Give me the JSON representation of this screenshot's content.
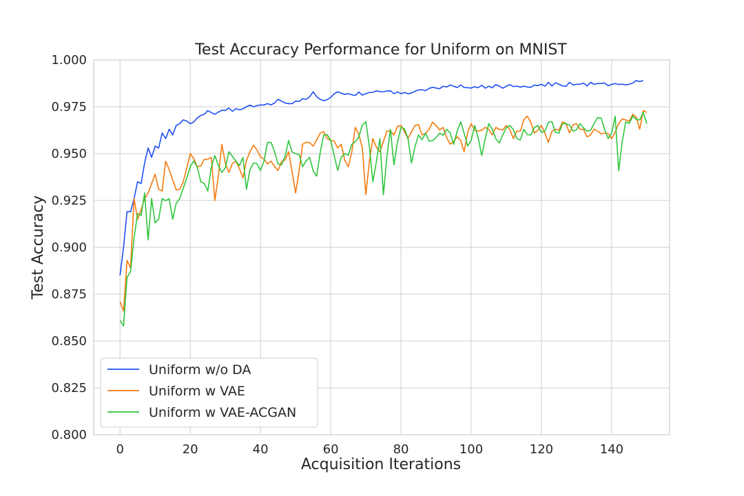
{
  "chart_data": {
    "type": "line",
    "title": "Test Accuracy Performance for Uniform on MNIST",
    "xlabel": "Acquisition Iterations",
    "ylabel": "Test Accuracy",
    "xlim": [
      -7.5,
      156.5
    ],
    "ylim": [
      0.8,
      1.0
    ],
    "xticks": [
      0,
      20,
      40,
      60,
      80,
      100,
      120,
      140
    ],
    "yticks": [
      "0.800",
      "0.825",
      "0.850",
      "0.875",
      "0.900",
      "0.925",
      "0.950",
      "0.975",
      "1.000"
    ],
    "grid": true,
    "legend_position": "lower-left",
    "series": [
      {
        "name": "Uniform w/o DA",
        "color": "#1d4ef2",
        "anchors": [
          [
            0,
            0.885
          ],
          [
            1,
            0.9
          ],
          [
            2,
            0.919
          ],
          [
            3,
            0.919
          ],
          [
            4,
            0.926
          ],
          [
            5,
            0.935
          ],
          [
            6,
            0.934
          ],
          [
            7,
            0.945
          ],
          [
            8,
            0.953
          ],
          [
            9,
            0.948
          ],
          [
            10,
            0.954
          ],
          [
            11,
            0.953
          ],
          [
            12,
            0.961
          ],
          [
            13,
            0.958
          ],
          [
            14,
            0.963
          ],
          [
            15,
            0.96
          ],
          [
            16,
            0.965
          ],
          [
            17,
            0.966
          ],
          [
            18,
            0.968
          ],
          [
            20,
            0.966
          ],
          [
            22,
            0.969
          ],
          [
            25,
            0.973
          ],
          [
            27,
            0.971
          ],
          [
            30,
            0.973
          ],
          [
            33,
            0.974
          ],
          [
            36,
            0.975
          ],
          [
            40,
            0.976
          ],
          [
            43,
            0.976
          ],
          [
            45,
            0.979
          ],
          [
            47,
            0.977
          ],
          [
            50,
            0.978
          ],
          [
            53,
            0.979
          ],
          [
            55,
            0.983
          ],
          [
            57,
            0.979
          ],
          [
            60,
            0.98
          ],
          [
            62,
            0.983
          ],
          [
            65,
            0.982
          ],
          [
            70,
            0.982
          ],
          [
            75,
            0.983
          ],
          [
            80,
            0.982
          ],
          [
            85,
            0.984
          ],
          [
            90,
            0.985
          ],
          [
            95,
            0.986
          ],
          [
            100,
            0.985
          ],
          [
            105,
            0.986
          ],
          [
            110,
            0.986
          ],
          [
            115,
            0.986
          ],
          [
            120,
            0.987
          ],
          [
            125,
            0.987
          ],
          [
            130,
            0.987
          ],
          [
            135,
            0.987
          ],
          [
            140,
            0.987
          ],
          [
            145,
            0.987
          ],
          [
            147,
            0.989
          ],
          [
            149,
            0.989
          ]
        ]
      },
      {
        "name": "Uniform w VAE",
        "color": "#f47a0c",
        "anchors": [
          [
            0,
            0.871
          ],
          [
            1,
            0.866
          ],
          [
            2,
            0.893
          ],
          [
            3,
            0.889
          ],
          [
            4,
            0.926
          ],
          [
            5,
            0.915
          ],
          [
            6,
            0.92
          ],
          [
            7,
            0.926
          ],
          [
            8,
            0.929
          ],
          [
            10,
            0.939
          ],
          [
            11,
            0.931
          ],
          [
            12,
            0.93
          ],
          [
            13,
            0.946
          ],
          [
            15,
            0.936
          ],
          [
            17,
            0.931
          ],
          [
            18,
            0.935
          ],
          [
            20,
            0.95
          ],
          [
            22,
            0.943
          ],
          [
            24,
            0.947
          ],
          [
            26,
            0.948
          ],
          [
            27,
            0.925
          ],
          [
            29,
            0.955
          ],
          [
            31,
            0.94
          ],
          [
            33,
            0.946
          ],
          [
            35,
            0.937
          ],
          [
            37,
            0.951
          ],
          [
            39,
            0.952
          ],
          [
            41,
            0.947
          ],
          [
            43,
            0.946
          ],
          [
            45,
            0.941
          ],
          [
            48,
            0.951
          ],
          [
            50,
            0.929
          ],
          [
            52,
            0.955
          ],
          [
            55,
            0.954
          ],
          [
            57,
            0.961
          ],
          [
            60,
            0.957
          ],
          [
            63,
            0.955
          ],
          [
            65,
            0.943
          ],
          [
            67,
            0.964
          ],
          [
            69,
            0.953
          ],
          [
            70,
            0.928
          ],
          [
            72,
            0.958
          ],
          [
            74,
            0.951
          ],
          [
            76,
            0.962
          ],
          [
            78,
            0.96
          ],
          [
            80,
            0.965
          ],
          [
            82,
            0.958
          ],
          [
            84,
            0.965
          ],
          [
            86,
            0.96
          ],
          [
            88,
            0.963
          ],
          [
            90,
            0.965
          ],
          [
            92,
            0.964
          ],
          [
            94,
            0.955
          ],
          [
            96,
            0.959
          ],
          [
            98,
            0.951
          ],
          [
            100,
            0.966
          ],
          [
            102,
            0.962
          ],
          [
            104,
            0.964
          ],
          [
            106,
            0.96
          ],
          [
            108,
            0.963
          ],
          [
            110,
            0.965
          ],
          [
            112,
            0.958
          ],
          [
            114,
            0.962
          ],
          [
            116,
            0.97
          ],
          [
            118,
            0.961
          ],
          [
            120,
            0.965
          ],
          [
            122,
            0.956
          ],
          [
            124,
            0.963
          ],
          [
            126,
            0.967
          ],
          [
            128,
            0.961
          ],
          [
            130,
            0.966
          ],
          [
            132,
            0.963
          ],
          [
            134,
            0.96
          ],
          [
            136,
            0.962
          ],
          [
            138,
            0.961
          ],
          [
            140,
            0.958
          ],
          [
            142,
            0.966
          ],
          [
            144,
            0.968
          ],
          [
            146,
            0.971
          ],
          [
            148,
            0.963
          ],
          [
            149,
            0.973
          ],
          [
            150,
            0.972
          ]
        ]
      },
      {
        "name": "Uniform w VAE-ACGAN",
        "color": "#2ec53c",
        "anchors": [
          [
            0,
            0.861
          ],
          [
            1,
            0.858
          ],
          [
            2,
            0.884
          ],
          [
            3,
            0.887
          ],
          [
            4,
            0.905
          ],
          [
            5,
            0.918
          ],
          [
            6,
            0.917
          ],
          [
            7,
            0.929
          ],
          [
            8,
            0.904
          ],
          [
            9,
            0.926
          ],
          [
            10,
            0.913
          ],
          [
            11,
            0.915
          ],
          [
            12,
            0.926
          ],
          [
            14,
            0.926
          ],
          [
            15,
            0.915
          ],
          [
            17,
            0.926
          ],
          [
            19,
            0.937
          ],
          [
            21,
            0.946
          ],
          [
            23,
            0.935
          ],
          [
            25,
            0.93
          ],
          [
            27,
            0.949
          ],
          [
            29,
            0.94
          ],
          [
            31,
            0.951
          ],
          [
            33,
            0.946
          ],
          [
            35,
            0.948
          ],
          [
            36,
            0.931
          ],
          [
            38,
            0.945
          ],
          [
            40,
            0.941
          ],
          [
            42,
            0.956
          ],
          [
            44,
            0.951
          ],
          [
            46,
            0.944
          ],
          [
            48,
            0.957
          ],
          [
            50,
            0.95
          ],
          [
            52,
            0.943
          ],
          [
            54,
            0.948
          ],
          [
            56,
            0.938
          ],
          [
            58,
            0.96
          ],
          [
            60,
            0.957
          ],
          [
            62,
            0.941
          ],
          [
            64,
            0.95
          ],
          [
            66,
            0.955
          ],
          [
            68,
            0.959
          ],
          [
            70,
            0.967
          ],
          [
            72,
            0.935
          ],
          [
            74,
            0.958
          ],
          [
            75,
            0.928
          ],
          [
            77,
            0.963
          ],
          [
            78,
            0.944
          ],
          [
            80,
            0.964
          ],
          [
            82,
            0.958
          ],
          [
            83,
            0.945
          ],
          [
            85,
            0.96
          ],
          [
            87,
            0.961
          ],
          [
            89,
            0.957
          ],
          [
            91,
            0.961
          ],
          [
            93,
            0.963
          ],
          [
            95,
            0.955
          ],
          [
            97,
            0.967
          ],
          [
            99,
            0.954
          ],
          [
            101,
            0.965
          ],
          [
            103,
            0.949
          ],
          [
            105,
            0.966
          ],
          [
            107,
            0.958
          ],
          [
            109,
            0.96
          ],
          [
            111,
            0.965
          ],
          [
            113,
            0.958
          ],
          [
            115,
            0.963
          ],
          [
            117,
            0.96
          ],
          [
            119,
            0.965
          ],
          [
            121,
            0.962
          ],
          [
            123,
            0.967
          ],
          [
            125,
            0.961
          ],
          [
            127,
            0.966
          ],
          [
            129,
            0.962
          ],
          [
            131,
            0.966
          ],
          [
            133,
            0.962
          ],
          [
            135,
            0.966
          ],
          [
            137,
            0.969
          ],
          [
            139,
            0.958
          ],
          [
            141,
            0.97
          ],
          [
            142,
            0.941
          ],
          [
            144,
            0.967
          ],
          [
            146,
            0.97
          ],
          [
            148,
            0.968
          ],
          [
            149,
            0.972
          ],
          [
            150,
            0.966
          ]
        ]
      }
    ]
  }
}
